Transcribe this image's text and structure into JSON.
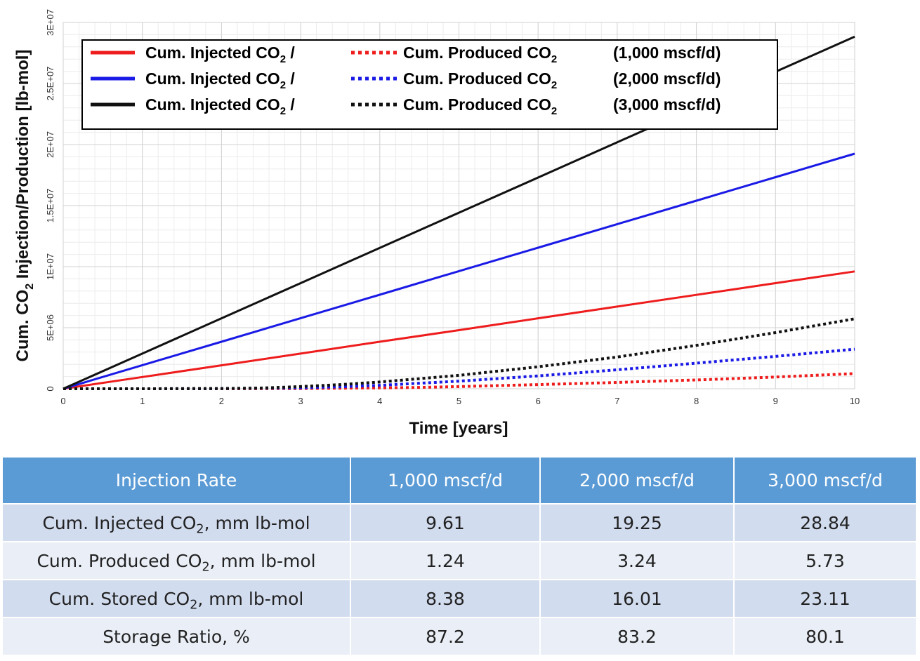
{
  "chart_data": {
    "type": "line",
    "xlabel": "Time [years]",
    "ylabel_parts": [
      "Cum. ",
      "CO",
      "2",
      " Injection/Production [lb-mol]"
    ],
    "xlim": [
      0,
      10
    ],
    "ylim": [
      0,
      30000000
    ],
    "x_ticks": [
      "0",
      "1",
      "2",
      "3",
      "4",
      "5",
      "6",
      "7",
      "8",
      "9",
      "10"
    ],
    "x_tick_values": [
      0,
      1,
      2,
      3,
      4,
      5,
      6,
      7,
      8,
      9,
      10
    ],
    "y_ticks": [
      "0",
      "5E+06",
      "1E+07",
      "1.5E+07",
      "2E+07",
      "2.5E+07",
      "3E+07"
    ],
    "y_tick_values": [
      0,
      5000000,
      10000000,
      15000000,
      20000000,
      25000000,
      30000000
    ],
    "grid": true,
    "legend_position": "top-left",
    "legend": [
      {
        "injected": "Cum. Injected CO",
        "sub": "2",
        "slash": "/",
        "produced": "Cum. Produced CO",
        "sub2": "2",
        "rate": "(1,000 mscf/d)",
        "color": "#ee1c1c"
      },
      {
        "injected": "Cum. Injected CO",
        "sub": "2",
        "slash": "/",
        "produced": "Cum. Produced CO",
        "sub2": "2",
        "rate": "(2,000 mscf/d)",
        "color": "#1a1ae6"
      },
      {
        "injected": "Cum. Injected CO",
        "sub": "2",
        "slash": "/",
        "produced": "Cum. Produced CO",
        "sub2": "2",
        "rate": "(3,000 mscf/d)",
        "color": "#111111"
      }
    ],
    "series": [
      {
        "color": "#ee1c1c",
        "style": "solid",
        "x": [
          0,
          1,
          2,
          3,
          4,
          5,
          6,
          7,
          8,
          9,
          10
        ],
        "y": [
          0,
          960000,
          1920000,
          2880000,
          3850000,
          4800000,
          5770000,
          6730000,
          7690000,
          8650000,
          9610000
        ]
      },
      {
        "color": "#1a1ae6",
        "style": "solid",
        "x": [
          0,
          1,
          2,
          3,
          4,
          5,
          6,
          7,
          8,
          9,
          10
        ],
        "y": [
          0,
          1930000,
          3850000,
          5780000,
          7700000,
          9630000,
          11550000,
          13480000,
          15400000,
          17330000,
          19250000
        ]
      },
      {
        "color": "#111111",
        "style": "solid",
        "x": [
          0,
          1,
          2,
          3,
          4,
          5,
          6,
          7,
          8,
          9,
          10
        ],
        "y": [
          0,
          2880000,
          5770000,
          8650000,
          11540000,
          14420000,
          17300000,
          20190000,
          23070000,
          25960000,
          28840000
        ]
      },
      {
        "color": "#ee1c1c",
        "style": "dotted",
        "x": [
          0,
          1,
          2,
          3,
          4,
          4.5,
          5,
          6,
          7,
          8,
          9,
          10
        ],
        "y": [
          0,
          0,
          0,
          20000,
          70000,
          110000,
          180000,
          340000,
          520000,
          720000,
          960000,
          1240000
        ]
      },
      {
        "color": "#1a1ae6",
        "style": "dotted",
        "x": [
          0,
          1,
          2,
          3,
          3.5,
          4,
          5,
          6,
          7,
          8,
          9,
          10
        ],
        "y": [
          0,
          0,
          10000,
          80000,
          160000,
          280000,
          620000,
          1050000,
          1550000,
          2100000,
          2650000,
          3240000
        ]
      },
      {
        "color": "#111111",
        "style": "dotted",
        "x": [
          0,
          1,
          2,
          2.5,
          3,
          3.5,
          4,
          5,
          6,
          7,
          8,
          9,
          10
        ],
        "y": [
          0,
          0,
          20000,
          60000,
          180000,
          340000,
          550000,
          1100000,
          1800000,
          2600000,
          3550000,
          4600000,
          5730000
        ]
      }
    ]
  },
  "table": {
    "header": [
      "Injection Rate",
      "1,000 mscf/d",
      "2,000 mscf/d",
      "3,000 mscf/d"
    ],
    "rows": [
      {
        "label_pre": "Cum. Injected CO",
        "label_sub": "2",
        "label_post": ", mm lb-mol",
        "values": [
          "9.61",
          "19.25",
          "28.84"
        ]
      },
      {
        "label_pre": "Cum. Produced CO",
        "label_sub": "2",
        "label_post": ", mm lb-mol",
        "values": [
          "1.24",
          "3.24",
          "5.73"
        ]
      },
      {
        "label_pre": "Cum. Stored CO",
        "label_sub": "2",
        "label_post": ", mm lb-mol",
        "values": [
          "8.38",
          "16.01",
          "23.11"
        ]
      },
      {
        "label_pre": "Storage Ratio, %",
        "label_sub": "",
        "label_post": "",
        "values": [
          "87.2",
          "83.2",
          "80.1"
        ]
      }
    ]
  }
}
